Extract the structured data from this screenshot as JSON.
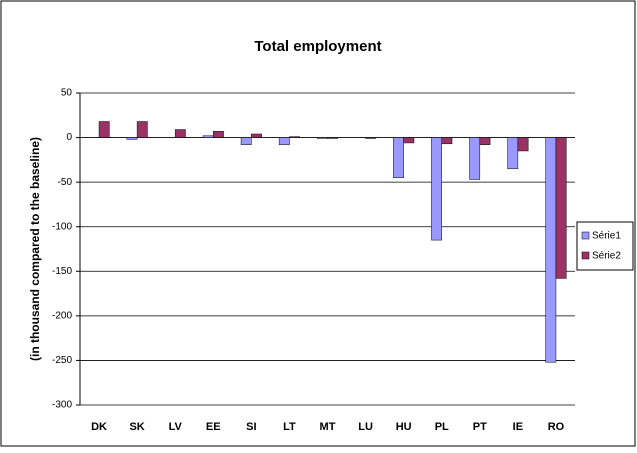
{
  "chart_data": {
    "type": "bar",
    "title": "Total employment",
    "y_label": "(in thousand compared to the baseline)",
    "categories": [
      "DK",
      "SK",
      "LV",
      "EE",
      "SI",
      "LT",
      "MT",
      "LU",
      "HU",
      "PL",
      "PT",
      "IE",
      "RO"
    ],
    "series": [
      {
        "name": "Série1",
        "color": "#9999ff",
        "values": [
          0,
          -2,
          0,
          2,
          -8,
          -8,
          -1,
          0,
          -45,
          -115,
          -47,
          -35,
          -252
        ]
      },
      {
        "name": "Série2",
        "color": "#993366",
        "values": [
          18,
          18,
          9,
          7,
          4,
          1,
          -1,
          -1,
          -6,
          -7,
          -8,
          -15,
          -158
        ]
      }
    ],
    "ylim": [
      -300,
      50
    ],
    "yticks": [
      -300,
      -250,
      -200,
      -150,
      -100,
      -50,
      0,
      50
    ],
    "grid": true,
    "legend": "right"
  }
}
